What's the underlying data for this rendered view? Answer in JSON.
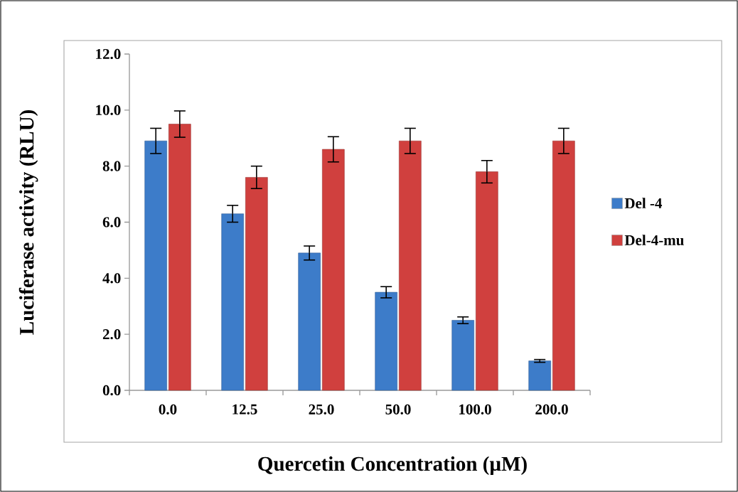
{
  "chart_data": {
    "type": "bar",
    "xlabel": "Quercetin Concentration (µM)",
    "ylabel": "Luciferase activity (RLU)",
    "categories": [
      "0.0",
      "12.5",
      "25.0",
      "50.0",
      "100.0",
      "200.0"
    ],
    "series": [
      {
        "name": "Del -4",
        "color": "#3d7cc9",
        "values": [
          8.9,
          6.3,
          4.9,
          3.5,
          2.5,
          1.05
        ],
        "errors": [
          0.45,
          0.3,
          0.25,
          0.2,
          0.12,
          0.05
        ]
      },
      {
        "name": "Del-4-mu",
        "color": "#d0403e",
        "values": [
          9.5,
          7.6,
          8.6,
          8.9,
          7.8,
          8.9
        ],
        "errors": [
          0.47,
          0.4,
          0.45,
          0.45,
          0.4,
          0.45
        ]
      }
    ],
    "ylim": [
      0,
      12
    ],
    "yticks": [
      {
        "value": 0,
        "label": "0.0"
      },
      {
        "value": 2,
        "label": "2.0"
      },
      {
        "value": 4,
        "label": "4.0"
      },
      {
        "value": 6,
        "label": "6.0"
      },
      {
        "value": 8,
        "label": "8.0"
      },
      {
        "value": 10,
        "label": "10.0"
      },
      {
        "value": 12,
        "label": "12.0"
      }
    ],
    "grid": false,
    "legend": "right"
  }
}
